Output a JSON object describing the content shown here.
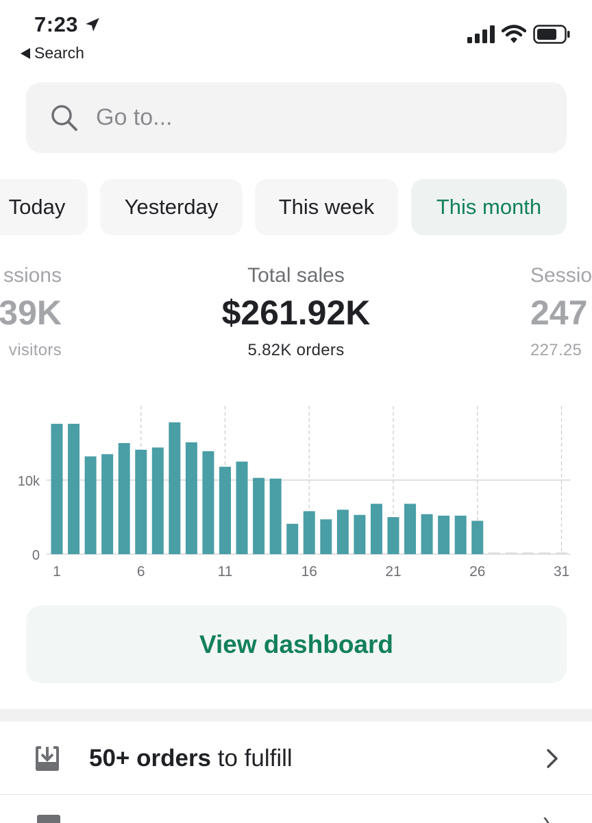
{
  "status_bar": {
    "time": "7:23",
    "back_label": "Search"
  },
  "search": {
    "placeholder": "Go to..."
  },
  "tabs": [
    {
      "label": "Today",
      "active": false
    },
    {
      "label": "Yesterday",
      "active": false
    },
    {
      "label": "This week",
      "active": false
    },
    {
      "label": "This month",
      "active": true
    }
  ],
  "metrics": {
    "left": {
      "label": "ssions",
      "value": "39K",
      "sub": "visitors"
    },
    "center": {
      "label": "Total sales",
      "value": "$261.92K",
      "sub": "5.82K orders"
    },
    "right": {
      "label": "Sessio",
      "value": "247",
      "sub": "227.25"
    }
  },
  "chart_data": {
    "type": "bar",
    "categories": [
      "1",
      "2",
      "3",
      "4",
      "5",
      "6",
      "7",
      "8",
      "9",
      "10",
      "11",
      "12",
      "13",
      "14",
      "15",
      "16",
      "17",
      "18",
      "19",
      "20",
      "21",
      "22",
      "23",
      "24",
      "25",
      "26",
      "27",
      "28",
      "29",
      "30",
      "31"
    ],
    "values": [
      17600,
      17600,
      13200,
      13500,
      15000,
      14100,
      14400,
      17800,
      15100,
      13900,
      11800,
      12500,
      10300,
      10200,
      4100,
      5800,
      4700,
      6000,
      5300,
      6800,
      5000,
      6800,
      5400,
      5200,
      5200,
      4500,
      0,
      0,
      0,
      0,
      0
    ],
    "x_tick_labels": [
      "1",
      "6",
      "11",
      "16",
      "21",
      "26",
      "31"
    ],
    "y_tick_labels": [
      "0",
      "10k"
    ],
    "ylim": [
      0,
      20000
    ],
    "bar_color": "#4a9ea6"
  },
  "dashboard_button": {
    "label": "View dashboard"
  },
  "orders_row": {
    "bold": "50+ orders",
    "rest": " to fulfill"
  },
  "colors": {
    "accent": "#12805c",
    "bar": "#4a9ea6"
  }
}
